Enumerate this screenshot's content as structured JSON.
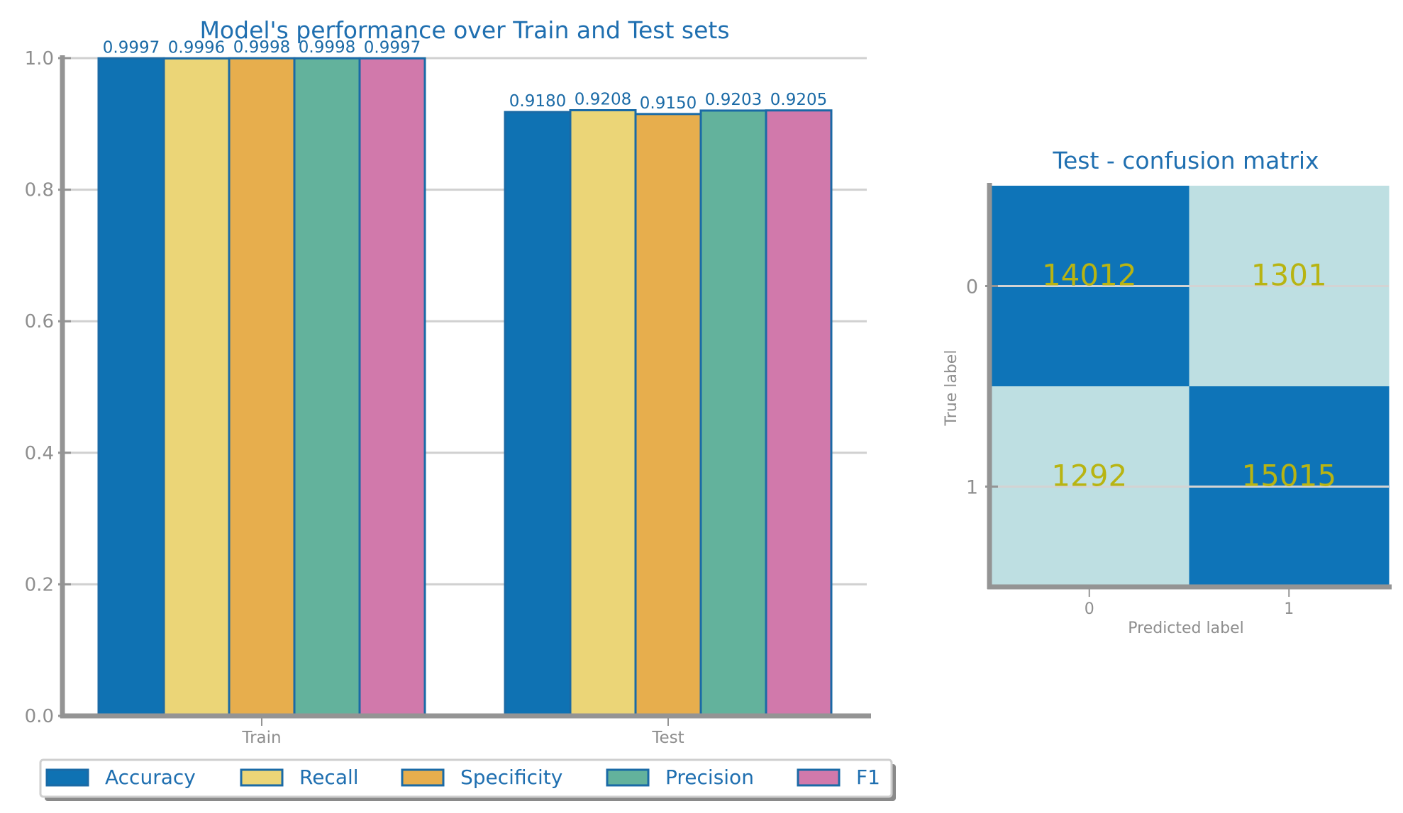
{
  "colors": {
    "title": "#1f6fb0",
    "tick": "#8e8e8e",
    "axis": "#949494",
    "grid": "#d0d0d0",
    "bar_edge": "#1a6aa6",
    "value_label": "#1a6aa6",
    "cm_dark": "#0e74b8",
    "cm_light": "#bedfe2",
    "cm_text": "#b8b412"
  },
  "chart_data": [
    {
      "type": "bar",
      "title": "Model's performance over Train and Test sets",
      "xlabel": "",
      "ylabel": "",
      "categories": [
        "Train",
        "Test"
      ],
      "ylim": [
        0,
        1.0
      ],
      "yticks": [
        "0.0",
        "0.2",
        "0.4",
        "0.6",
        "0.8",
        "1.0"
      ],
      "grid": true,
      "legend_position": "bottom",
      "series": [
        {
          "name": "Accuracy",
          "color": "#0f72b3",
          "values": [
            0.9997,
            0.918
          ],
          "labels": [
            "0.9997",
            "0.9180"
          ]
        },
        {
          "name": "Recall",
          "color": "#ebd577",
          "values": [
            0.9996,
            0.9208
          ],
          "labels": [
            "0.9996",
            "0.9208"
          ]
        },
        {
          "name": "Specificity",
          "color": "#e7ae4d",
          "values": [
            0.9998,
            0.915
          ],
          "labels": [
            "0.9998",
            "0.9150"
          ]
        },
        {
          "name": "Precision",
          "color": "#63b29c",
          "values": [
            0.9998,
            0.9203
          ],
          "labels": [
            "0.9998",
            "0.9203"
          ]
        },
        {
          "name": "F1",
          "color": "#d179ab",
          "values": [
            0.9997,
            0.9205
          ],
          "labels": [
            "0.9997",
            "0.9205"
          ]
        }
      ]
    },
    {
      "type": "heatmap",
      "title": "Test - confusion matrix",
      "xlabel": "Predicted label",
      "ylabel": "True label",
      "x_categories": [
        "0",
        "1"
      ],
      "y_categories": [
        "0",
        "1"
      ],
      "values": [
        [
          14012,
          1301
        ],
        [
          1292,
          15015
        ]
      ],
      "cell_labels": [
        [
          "14012",
          "1301"
        ],
        [
          "1292",
          "15015"
        ]
      ]
    }
  ]
}
